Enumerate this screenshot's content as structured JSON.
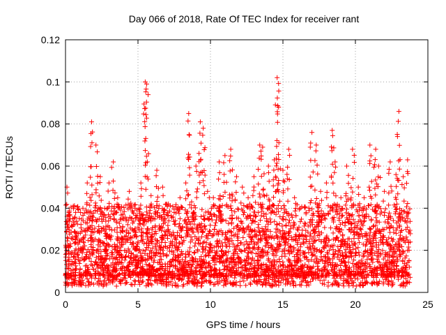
{
  "chart_data": {
    "type": "scatter",
    "title": "Day 066 of 2018, Rate Of TEC Index for receiver rant",
    "xlabel": "GPS time / hours",
    "ylabel": "ROTI / TECUs",
    "xlim": [
      0,
      25
    ],
    "ylim": [
      0,
      0.12
    ],
    "xticks": [
      0,
      5,
      10,
      15,
      20,
      25
    ],
    "xtick_labels": [
      "0",
      "5",
      "10",
      "15",
      "20",
      "25"
    ],
    "yticks": [
      0,
      0.02,
      0.04,
      0.06,
      0.08,
      0.1,
      0.12
    ],
    "ytick_labels": [
      "0",
      "0.02",
      "0.04",
      "0.06",
      "0.08",
      "0.1",
      "0.12"
    ],
    "grid": true,
    "marker": "+",
    "color": "#ff0000",
    "series": [
      {
        "name": "ROTI",
        "x": [
          0.1,
          0.2,
          0.3,
          0.5,
          0.7,
          0.9,
          1.2,
          1.5,
          1.8,
          2.1,
          2.4,
          2.7,
          3.0,
          3.3,
          3.6,
          4.0,
          4.4,
          4.8,
          5.2,
          5.5,
          5.6,
          5.9,
          6.3,
          6.7,
          7.1,
          7.5,
          7.9,
          8.3,
          8.5,
          8.7,
          9.0,
          9.3,
          9.5,
          9.8,
          10.2,
          10.6,
          11.0,
          11.4,
          11.8,
          12.2,
          12.6,
          13.0,
          13.4,
          13.6,
          14.0,
          14.4,
          14.6,
          14.7,
          15.0,
          15.4,
          15.8,
          16.2,
          16.6,
          17.0,
          17.3,
          17.6,
          18.0,
          18.4,
          18.6,
          19.0,
          19.4,
          19.8,
          20.2,
          20.6,
          21.0,
          21.4,
          21.6,
          22.0,
          22.4,
          22.8,
          23.0,
          23.3,
          23.6,
          0.4,
          1.0,
          1.9,
          2.3,
          3.5,
          4.2,
          5.0,
          6.5,
          7.7,
          8.0,
          9.2,
          10.4,
          11.2,
          12.0,
          12.8,
          13.8,
          14.2,
          15.2,
          16.0,
          17.2,
          18.2,
          19.2,
          20.0,
          21.2,
          22.2,
          23.2,
          23.7
        ],
        "y": [
          0.05,
          0.031,
          0.022,
          0.035,
          0.038,
          0.028,
          0.04,
          0.052,
          0.081,
          0.07,
          0.055,
          0.04,
          0.052,
          0.062,
          0.045,
          0.035,
          0.048,
          0.04,
          0.052,
          0.1,
          0.099,
          0.046,
          0.058,
          0.05,
          0.042,
          0.038,
          0.045,
          0.052,
          0.085,
          0.043,
          0.06,
          0.081,
          0.078,
          0.048,
          0.045,
          0.062,
          0.065,
          0.068,
          0.055,
          0.05,
          0.045,
          0.055,
          0.07,
          0.069,
          0.06,
          0.063,
          0.102,
          0.088,
          0.058,
          0.068,
          0.045,
          0.04,
          0.038,
          0.076,
          0.07,
          0.048,
          0.052,
          0.077,
          0.062,
          0.045,
          0.06,
          0.068,
          0.05,
          0.045,
          0.07,
          0.068,
          0.06,
          0.048,
          0.062,
          0.056,
          0.086,
          0.055,
          0.063,
          0.018,
          0.015,
          0.02,
          0.025,
          0.022,
          0.019,
          0.024,
          0.021,
          0.02,
          0.026,
          0.023,
          0.022,
          0.025,
          0.03,
          0.024,
          0.022,
          0.026,
          0.024,
          0.018,
          0.021,
          0.02,
          0.022,
          0.023,
          0.022,
          0.024,
          0.025,
          0.02
        ],
        "dense_band": {
          "x_range": [
            0,
            23.8
          ],
          "y_min": 0.003,
          "y_typical": [
            0.008,
            0.03
          ]
        }
      }
    ]
  }
}
